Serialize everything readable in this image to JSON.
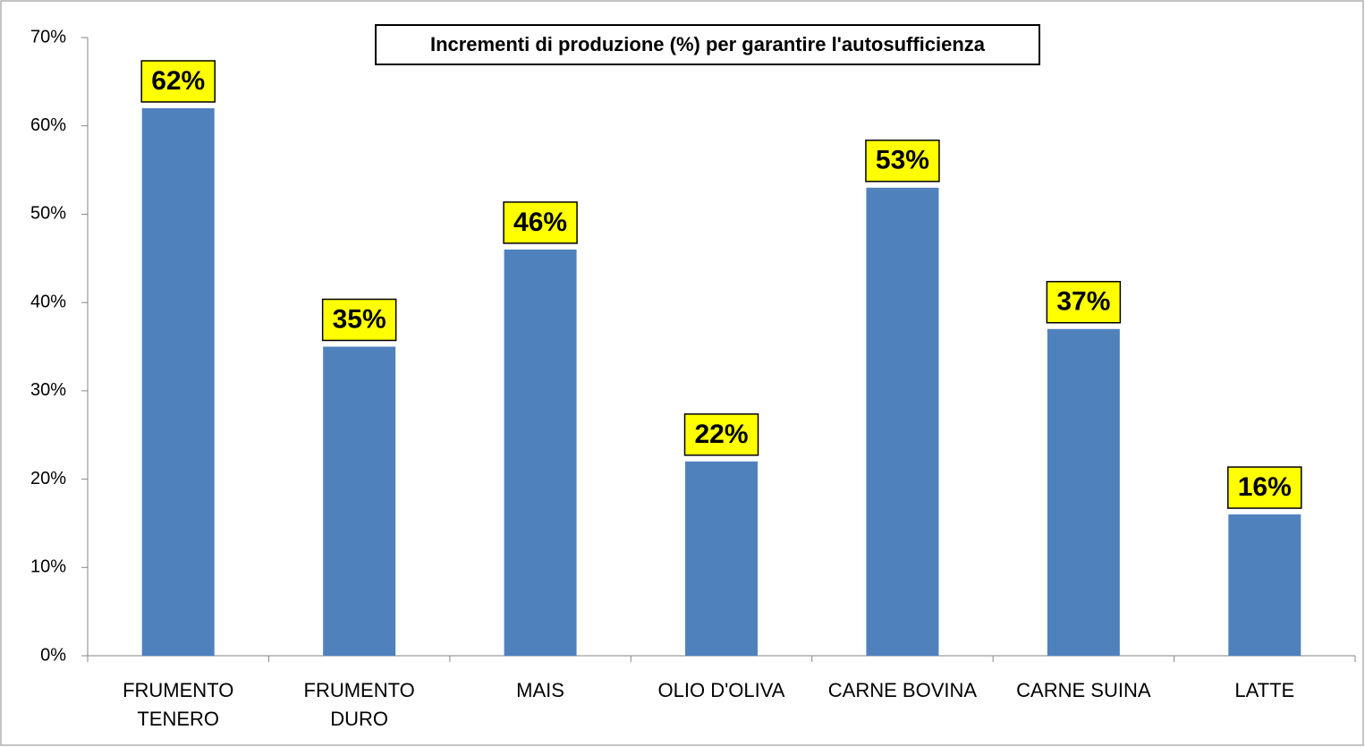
{
  "chart_data": {
    "type": "bar",
    "title": "Incrementi di produzione (%) per garantire l'autosufficienza",
    "categories": [
      "FRUMENTO\nTENERO",
      "FRUMENTO\nDURO",
      "MAIS",
      "OLIO D'OLIVA",
      "CARNE BOVINA",
      "CARNE SUINA",
      "LATTE"
    ],
    "values": [
      62,
      35,
      46,
      22,
      53,
      37,
      16
    ],
    "value_labels": [
      "62%",
      "35%",
      "46%",
      "22%",
      "53%",
      "37%",
      "16%"
    ],
    "color": "#4f81bd",
    "ylim": [
      0,
      70
    ],
    "yticks": [
      {
        "value": 0,
        "label": "0%"
      },
      {
        "value": 10,
        "label": "10%"
      },
      {
        "value": 20,
        "label": "20%"
      },
      {
        "value": 30,
        "label": "30%"
      },
      {
        "value": 40,
        "label": "40%"
      },
      {
        "value": 50,
        "label": "50%"
      },
      {
        "value": 60,
        "label": "60%"
      },
      {
        "value": 70,
        "label": "70%"
      }
    ],
    "grid": false
  }
}
